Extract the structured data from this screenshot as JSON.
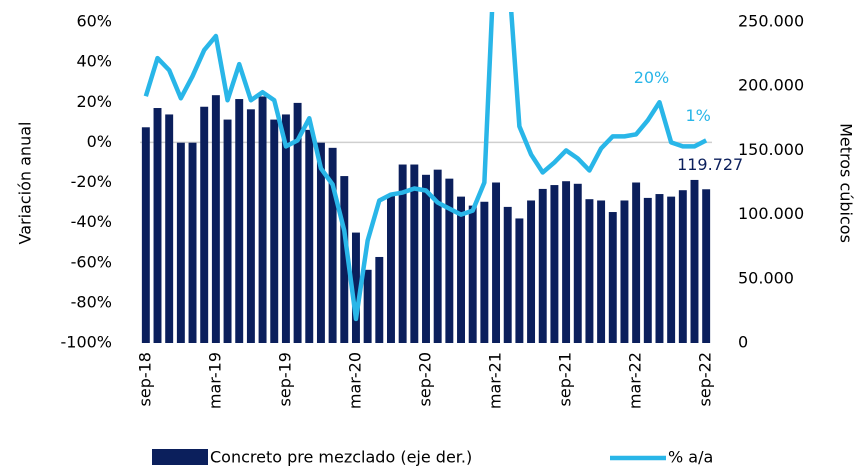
{
  "chart_data": {
    "type": "bar-line",
    "categories": [
      "sep-18",
      null,
      null,
      null,
      null,
      null,
      "mar-19",
      null,
      null,
      null,
      null,
      null,
      "sep-19",
      null,
      null,
      null,
      null,
      null,
      "mar-20",
      null,
      null,
      null,
      null,
      null,
      "sep-20",
      null,
      null,
      null,
      null,
      null,
      "mar-21",
      null,
      null,
      null,
      null,
      null,
      "sep-21",
      null,
      null,
      null,
      null,
      null,
      "mar-22",
      null,
      null,
      null,
      null,
      null,
      "sep-22"
    ],
    "ylabel": "Variación anual",
    "y2label": "Metros cúbicos",
    "ylim": [
      -100,
      60
    ],
    "yticks": [
      {
        "value": -100,
        "label": "-100%"
      },
      {
        "value": -80,
        "label": "-80%"
      },
      {
        "value": -60,
        "label": "-60%"
      },
      {
        "value": -40,
        "label": "-40%"
      },
      {
        "value": -20,
        "label": "-20%"
      },
      {
        "value": 0,
        "label": "0%"
      },
      {
        "value": 20,
        "label": "20%"
      },
      {
        "value": 40,
        "label": "40%"
      },
      {
        "value": 60,
        "label": "60%"
      }
    ],
    "y2lim": [
      0,
      250000
    ],
    "y2ticks": [
      0,
      {
        "value": 50000,
        "label": "50.000"
      },
      {
        "value": 100000,
        "label": "100.000"
      },
      {
        "value": 150000,
        "label": "150.000"
      },
      {
        "value": 200000,
        "label": "200.000"
      },
      {
        "value": 250000,
        "label": "250.000"
      }
    ],
    "series": [
      {
        "name": "Concreto pre mezclado (eje der.)",
        "type": "bar",
        "axis": "y2",
        "color": "#0b1f5c",
        "values": [
          168000,
          183000,
          178000,
          156000,
          156000,
          184000,
          193000,
          174000,
          190000,
          182000,
          192000,
          174000,
          178000,
          187000,
          166000,
          156000,
          152000,
          130000,
          86000,
          57000,
          67000,
          116000,
          139000,
          139000,
          131000,
          135000,
          128000,
          114000,
          107000,
          110000,
          125000,
          106000,
          97000,
          111000,
          120000,
          123000,
          126000,
          124000,
          112000,
          111000,
          102000,
          111000,
          125000,
          113000,
          116000,
          114000,
          119000,
          127000,
          119727
        ],
        "value_labels": [
          null,
          null,
          null,
          null,
          null,
          null,
          null,
          null,
          null,
          null,
          null,
          null,
          null,
          null,
          null,
          null,
          null,
          null,
          null,
          null,
          null,
          null,
          null,
          null,
          null,
          null,
          null,
          null,
          null,
          null,
          null,
          null,
          null,
          null,
          null,
          null,
          null,
          null,
          null,
          null,
          null,
          null,
          null,
          null,
          null,
          null,
          null,
          null,
          "119.727"
        ]
      },
      {
        "name": "% a/a",
        "type": "line",
        "color": "#29b6e8",
        "values": [
          23,
          42,
          36,
          22,
          33,
          46,
          53,
          21,
          39,
          21,
          25,
          21,
          -2,
          1,
          12,
          -13,
          -21,
          -44,
          -88,
          -49,
          -29,
          -26,
          -25,
          -23,
          -24,
          -30,
          -33,
          -36,
          -34,
          -20,
          110,
          90,
          8,
          -6,
          -15,
          -10,
          -4,
          -8,
          -14,
          -3,
          3,
          3,
          4,
          11,
          20,
          0,
          -2,
          -2,
          1
        ],
        "value_labels": [
          null,
          null,
          null,
          null,
          null,
          null,
          null,
          null,
          null,
          null,
          null,
          null,
          null,
          null,
          null,
          null,
          null,
          null,
          null,
          null,
          null,
          null,
          null,
          null,
          null,
          null,
          null,
          null,
          null,
          null,
          null,
          null,
          null,
          null,
          null,
          null,
          null,
          null,
          null,
          null,
          null,
          null,
          null,
          null,
          "20%",
          null,
          null,
          null,
          "1%"
        ]
      }
    ]
  }
}
